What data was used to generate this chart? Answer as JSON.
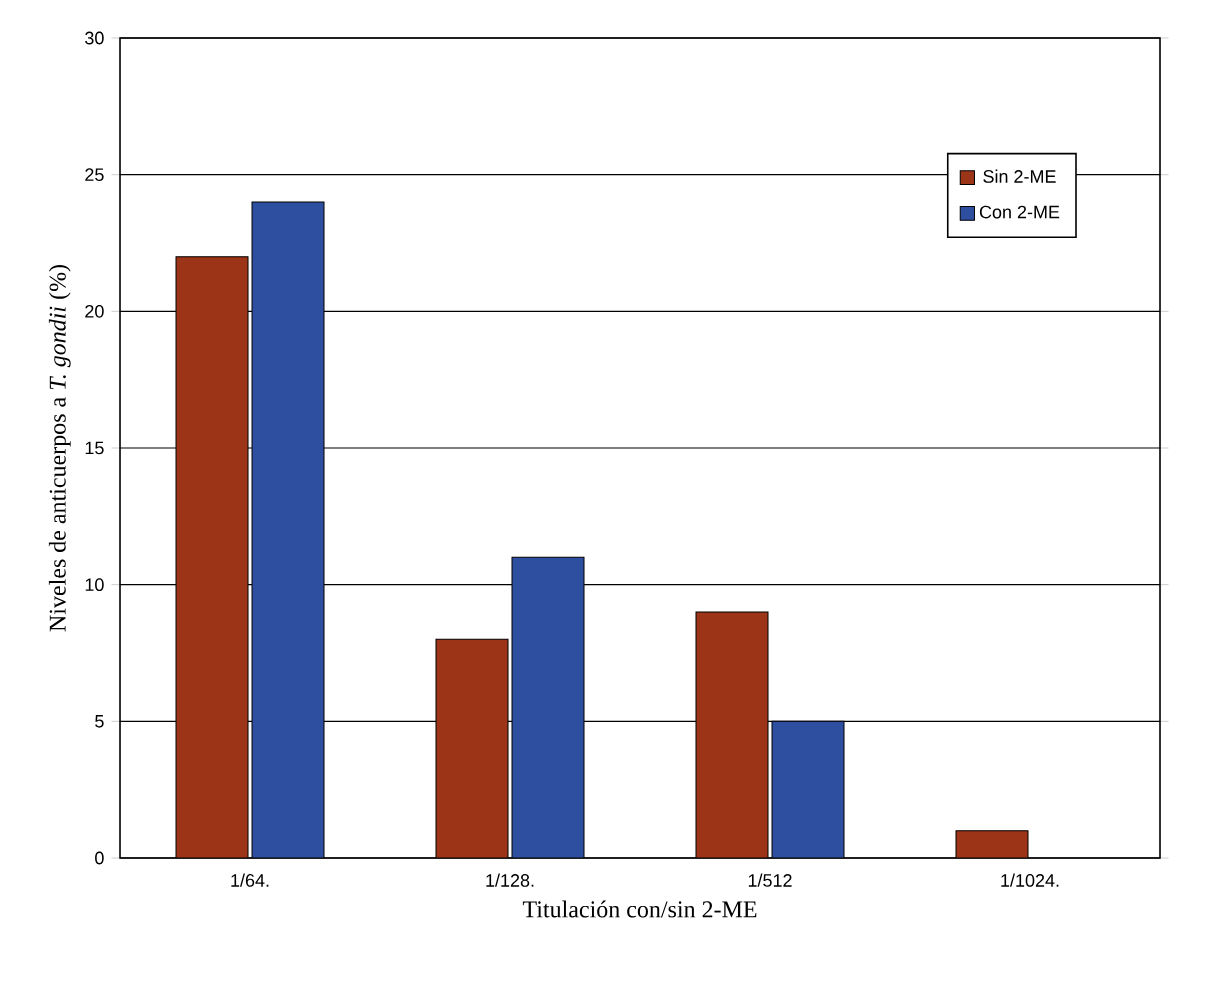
{
  "chart_data": {
    "type": "bar",
    "xlabel": "Titulación con/sin 2-ME",
    "ylabel": "Niveles de anticuerpos  a *T. gondii* (%)",
    "categories": [
      "1/64.",
      "1/128.",
      "1/512",
      "1/1024."
    ],
    "series": [
      {
        "name": "Sin  2-ME",
        "color": "#9c3418",
        "values": [
          22,
          8,
          9,
          1
        ]
      },
      {
        "name": "Con 2-ME",
        "color": "#2e4ea0",
        "values": [
          24,
          11,
          5,
          null
        ]
      }
    ],
    "ylim": [
      0,
      30
    ],
    "yticks": [
      0,
      5,
      10,
      15,
      20,
      25,
      30
    ],
    "grid": "y",
    "legend": "top right"
  }
}
